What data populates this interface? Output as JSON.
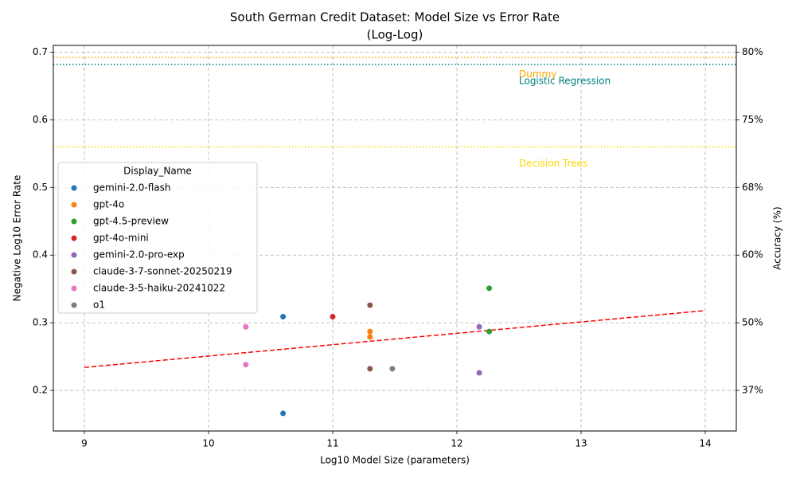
{
  "chart_data": {
    "type": "scatter",
    "title": "South German Credit Dataset: Model Size vs Error Rate",
    "subtitle": "(Log-Log)",
    "x_label": "Log10 Model Size (parameters)",
    "y_label": "Negative Log10 Error Rate",
    "y2_label": "Accuracy (%)",
    "legend_title": "Display_Name",
    "legend": "center left",
    "grid": true,
    "xlim": [
      8.75,
      14.25
    ],
    "xticks": [
      9,
      10,
      11,
      12,
      13,
      14
    ],
    "ylim": [
      0.14,
      0.71
    ],
    "yticks": [
      0.2,
      0.3,
      0.4,
      0.5,
      0.6,
      0.7
    ],
    "y2scale": "neg-log10-error",
    "y2lim": [
      27.56,
      80.46
    ],
    "y2ticks": [
      {
        "value": 36.9,
        "label": "37%"
      },
      {
        "value": 49.88,
        "label": "50%"
      },
      {
        "value": 60.19,
        "label": "60%"
      },
      {
        "value": 68.38,
        "label": "68%"
      },
      {
        "value": 74.88,
        "label": "75%"
      },
      {
        "value": 80.05,
        "label": "80%"
      }
    ],
    "series": [
      {
        "name": "gemini-2.0-flash",
        "color": "#1f77b4",
        "x": [
          10.6,
          10.6
        ],
        "values": [
          0.309,
          0.166
        ]
      },
      {
        "name": "gpt-4o",
        "color": "#ff7f0e",
        "x": [
          11.3,
          11.3
        ],
        "values": [
          0.287,
          0.279
        ]
      },
      {
        "name": "gpt-4.5-preview",
        "color": "#2ca02c",
        "x": [
          12.26,
          12.26
        ],
        "values": [
          0.351,
          0.287
        ]
      },
      {
        "name": "gpt-4o-mini",
        "color": "#d62728",
        "x": [
          11.0
        ],
        "values": [
          0.309
        ]
      },
      {
        "name": "gemini-2.0-pro-exp",
        "color": "#9467bd",
        "x": [
          12.18,
          12.18
        ],
        "values": [
          0.294,
          0.226
        ]
      },
      {
        "name": "claude-3-7-sonnet-20250219",
        "color": "#8c564b",
        "x": [
          11.3,
          11.3
        ],
        "values": [
          0.326,
          0.232
        ]
      },
      {
        "name": "claude-3-5-haiku-20241022",
        "color": "#e377c2",
        "x": [
          10.3,
          10.3
        ],
        "values": [
          0.294,
          0.238
        ]
      },
      {
        "name": "o1",
        "color": "#7f7f7f",
        "x": [
          11.48
        ],
        "values": [
          0.232
        ]
      }
    ],
    "trendline": {
      "color": "#ff0000",
      "x": [
        9,
        14
      ],
      "values": [
        0.234,
        0.318
      ]
    },
    "baselines": [
      {
        "name": "Dummy",
        "value": 0.692,
        "color": "orange"
      },
      {
        "name": "Logistic Regression",
        "value": 0.682,
        "color": "teal"
      },
      {
        "name": "Decision Trees",
        "value": 0.56,
        "color": "gold"
      }
    ]
  }
}
